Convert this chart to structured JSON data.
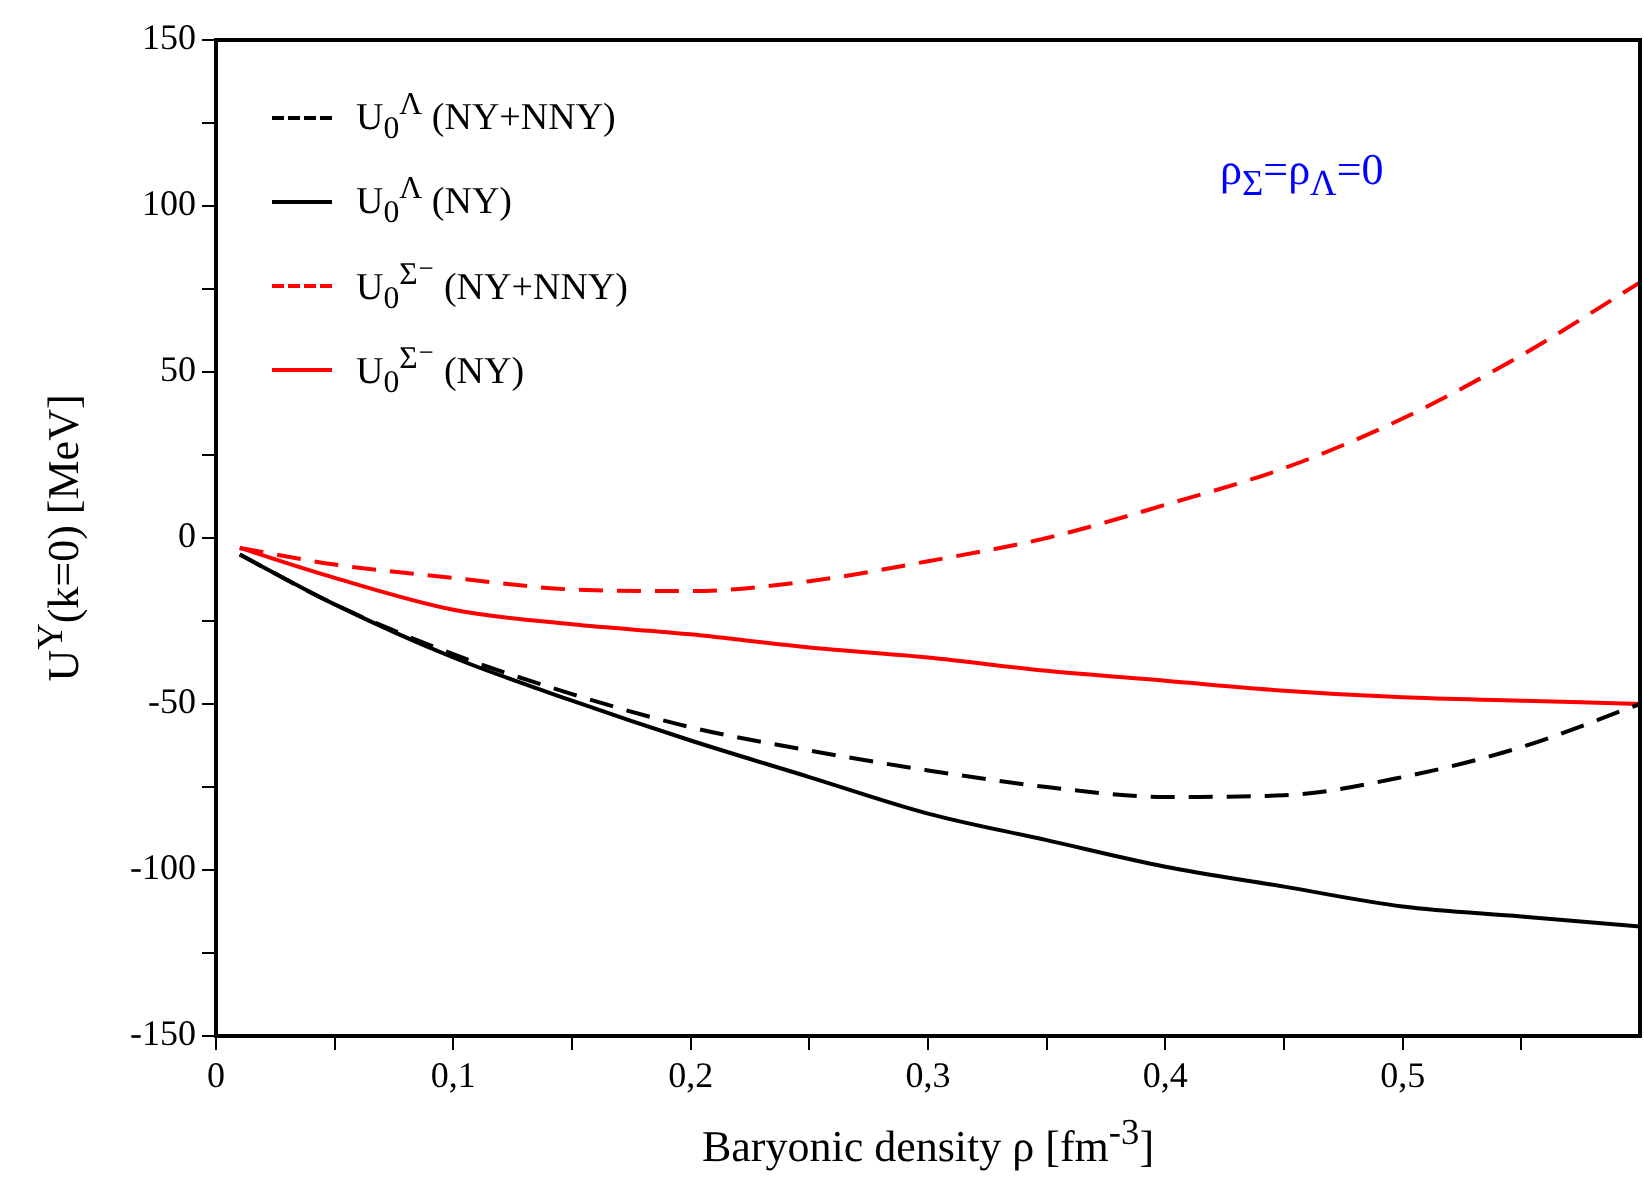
{
  "chart_data": {
    "type": "line",
    "xlabel": "Baryonic density ρ [fm$^{-3}$]",
    "ylabel": "U$^{Y}$(k=0) [MeV]",
    "annotations": [
      "ρ$_{Σ}$=ρ$_{Λ}$=0"
    ],
    "x": [
      0.01,
      0.05,
      0.1,
      0.15,
      0.2,
      0.25,
      0.3,
      0.35,
      0.4,
      0.45,
      0.5,
      0.55,
      0.6
    ],
    "series": [
      {
        "name": "U$_{0}$$^{Λ}$ (NY+NNY)",
        "color": "#000000",
        "line_style": "dashed",
        "values": [
          -5,
          -20,
          -35,
          -47,
          -57,
          -64,
          -70,
          -75,
          -78,
          -77.5,
          -72,
          -63,
          -50
        ]
      },
      {
        "name": "U$_{0}$$^{Λ}$ (NY)",
        "color": "#000000",
        "line_style": "solid",
        "values": [
          -5,
          -20,
          -36,
          -49,
          -61,
          -72,
          -83,
          -91,
          -99,
          -105,
          -111,
          -114,
          -117
        ]
      },
      {
        "name": "U$_{0}$$^{Σ⁻}$ (NY+NNY)",
        "color": "#ff0000",
        "line_style": "dashed",
        "values": [
          -3,
          -8,
          -12,
          -15.5,
          -16,
          -13,
          -7,
          0,
          10,
          21,
          36,
          55,
          77
        ]
      },
      {
        "name": "U$_{0}$$^{Σ⁻}$ (NY)",
        "color": "#ff0000",
        "line_style": "solid",
        "values": [
          -3,
          -12,
          -21.6,
          -26,
          -29,
          -33,
          -36,
          -40,
          -43,
          -46,
          -48,
          -49,
          -50
        ]
      }
    ],
    "xlim": [
      0,
      0.6
    ],
    "xticks": [
      0,
      {
        "value": 0.05,
        "label": null
      },
      {
        "value": 0.1,
        "label": "0,1"
      },
      {
        "value": 0.15,
        "label": null
      },
      {
        "value": 0.2,
        "label": "0,2"
      },
      {
        "value": 0.25,
        "label": null
      },
      {
        "value": 0.3,
        "label": "0,3"
      },
      {
        "value": 0.35,
        "label": null
      },
      {
        "value": 0.4,
        "label": "0,4"
      },
      {
        "value": 0.45,
        "label": null
      },
      {
        "value": 0.5,
        "label": "0,5"
      },
      {
        "value": 0.55,
        "label": null
      }
    ],
    "ylim": [
      -150,
      150
    ],
    "yticks": [
      -150,
      {
        "value": -125,
        "label": null
      },
      -100,
      {
        "value": -75,
        "label": null
      },
      -50,
      {
        "value": -25,
        "label": null
      },
      0,
      {
        "value": 25,
        "label": null
      },
      50,
      {
        "value": 75,
        "label": null
      },
      100,
      {
        "value": 125,
        "label": null
      },
      150
    ],
    "grid": false,
    "legend": "top left",
    "marker": "none"
  }
}
